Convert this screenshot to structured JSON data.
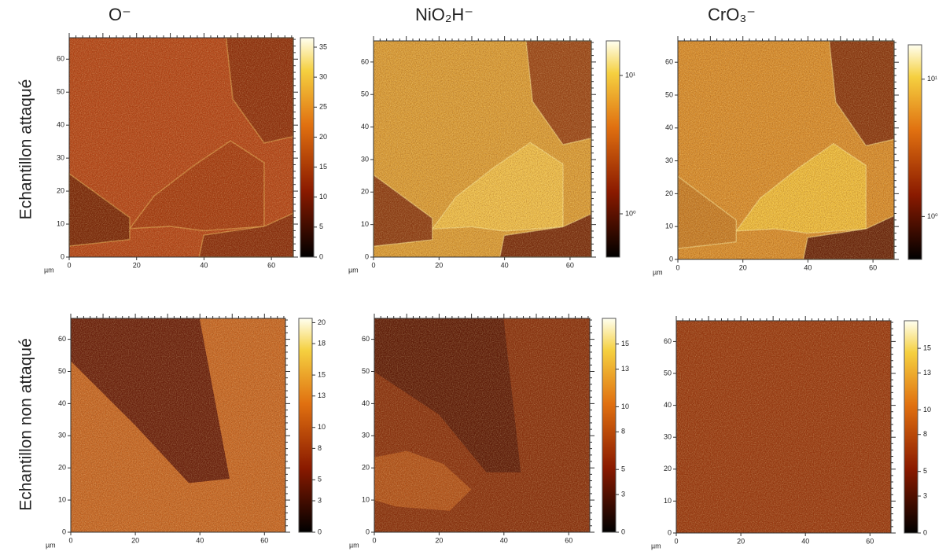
{
  "columns": [
    "O⁻",
    "NiO₂H⁻",
    "CrO₃⁻"
  ],
  "rows": [
    "Echantillon attaqué",
    "Echantillon non attaqué"
  ],
  "panels": [
    {
      "unit": "µm",
      "xticks": [
        0,
        20,
        40,
        60
      ],
      "yticks": [
        0,
        10,
        20,
        30,
        40,
        50,
        60
      ],
      "colorbar": [
        0,
        5,
        10,
        15,
        20,
        25,
        30,
        35
      ]
    },
    {
      "unit": "µm",
      "xticks": [
        0,
        20,
        40,
        60
      ],
      "yticks": [
        0,
        10,
        20,
        30,
        40,
        50,
        60
      ],
      "colorbar": [
        "10⁰",
        "10¹"
      ]
    },
    {
      "unit": "µm",
      "xticks": [
        0,
        20,
        40,
        60
      ],
      "yticks": [
        0,
        10,
        20,
        30,
        40,
        50,
        60
      ],
      "colorbar": [
        "10⁰",
        "10¹"
      ]
    },
    {
      "unit": "µm",
      "xticks": [
        0,
        20,
        40,
        60
      ],
      "yticks": [
        0,
        10,
        20,
        30,
        40,
        50,
        60
      ],
      "colorbar": [
        0,
        3,
        5,
        8,
        10,
        13,
        15,
        18,
        20
      ]
    },
    {
      "unit": "µm",
      "xticks": [
        0,
        20,
        40,
        60
      ],
      "yticks": [
        0,
        10,
        20,
        30,
        40,
        50,
        60
      ],
      "colorbar": [
        0,
        3,
        5,
        8,
        10,
        13,
        15
      ]
    },
    {
      "unit": "µm",
      "xticks": [
        0,
        20,
        40,
        60
      ],
      "yticks": [
        0,
        10,
        20,
        30,
        40,
        50,
        60
      ],
      "colorbar": [
        0,
        3,
        5,
        8,
        10,
        13,
        15
      ]
    }
  ]
}
